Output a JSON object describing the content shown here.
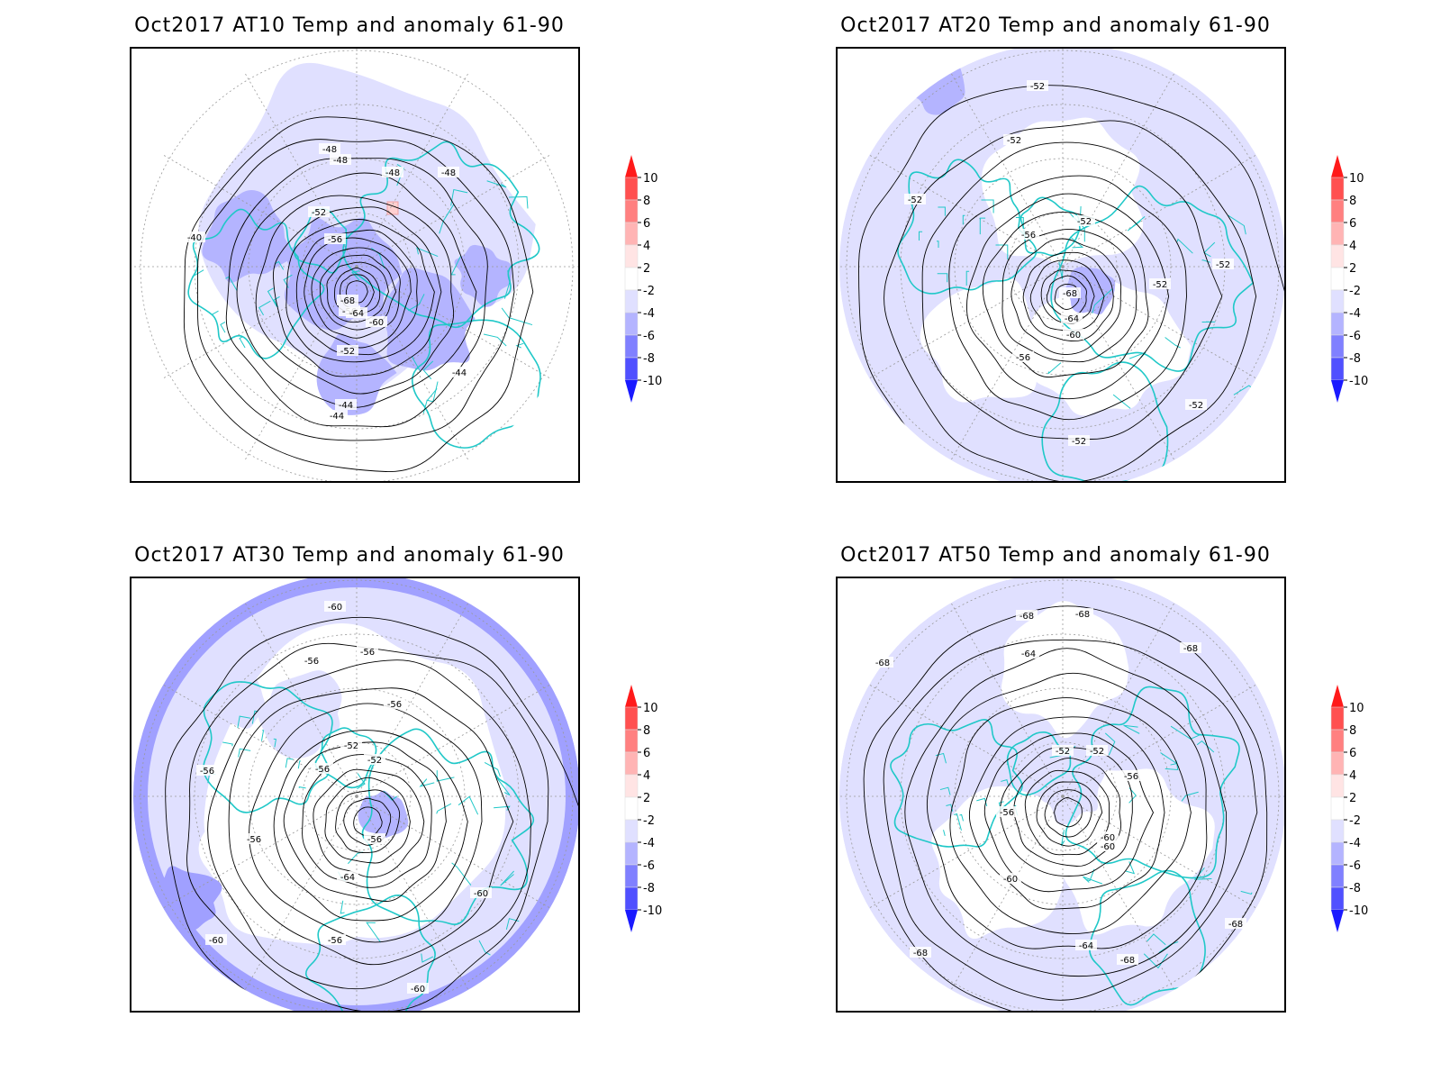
{
  "panels": [
    {
      "title": "Oct2017 AT10 Temp and anomaly 61-90",
      "level": "AT10",
      "contour_labels": [
        "-40",
        "-44",
        "-44",
        "-44",
        "-48",
        "-48",
        "-48",
        "-48",
        "-52",
        "-56",
        "-52",
        "-56",
        "-60",
        "-64",
        "-68"
      ]
    },
    {
      "title": "Oct2017 AT20 Temp and anomaly 61-90",
      "level": "AT20",
      "contour_labels": [
        "-52",
        "-52",
        "-52",
        "-52",
        "-52",
        "-52",
        "-52",
        "-52",
        "-56",
        "-56",
        "-60",
        "-64",
        "-68"
      ]
    },
    {
      "title": "Oct2017 AT30 Temp and anomaly 61-90",
      "level": "AT30",
      "contour_labels": [
        "-60",
        "-56",
        "-56",
        "-56",
        "-56",
        "-52",
        "-52",
        "-56",
        "-56",
        "-56",
        "-60",
        "-60",
        "-64",
        "-56",
        "-60"
      ]
    },
    {
      "title": "Oct2017 AT50 Temp and anomaly 61-90",
      "level": "AT50",
      "contour_labels": [
        "-68",
        "-68",
        "-68",
        "-68",
        "-64",
        "-52",
        "-52",
        "-56",
        "-56",
        "-60",
        "-60",
        "-60",
        "-64",
        "-68",
        "-68",
        "-68"
      ]
    }
  ],
  "colorbar": {
    "labels": [
      "10",
      "8",
      "6",
      "4",
      "2",
      "-2",
      "-4",
      "-6",
      "-8",
      "-10"
    ],
    "colors": [
      "#ff1a1a",
      "#ff5050",
      "#ff8080",
      "#ffb4b4",
      "#ffe4e4",
      "#ffffff",
      "#e0e0ff",
      "#b4b4ff",
      "#8080ff",
      "#5050ff",
      "#1a1aff"
    ]
  },
  "colors": {
    "coastline": "#20c8c8",
    "contour": "#000000",
    "anomaly_light": "#e0e0ff",
    "anomaly_medium": "#b4b4ff",
    "anomaly_strong": "#a0a0ff",
    "anomaly_positive": "#ffd0d0"
  }
}
